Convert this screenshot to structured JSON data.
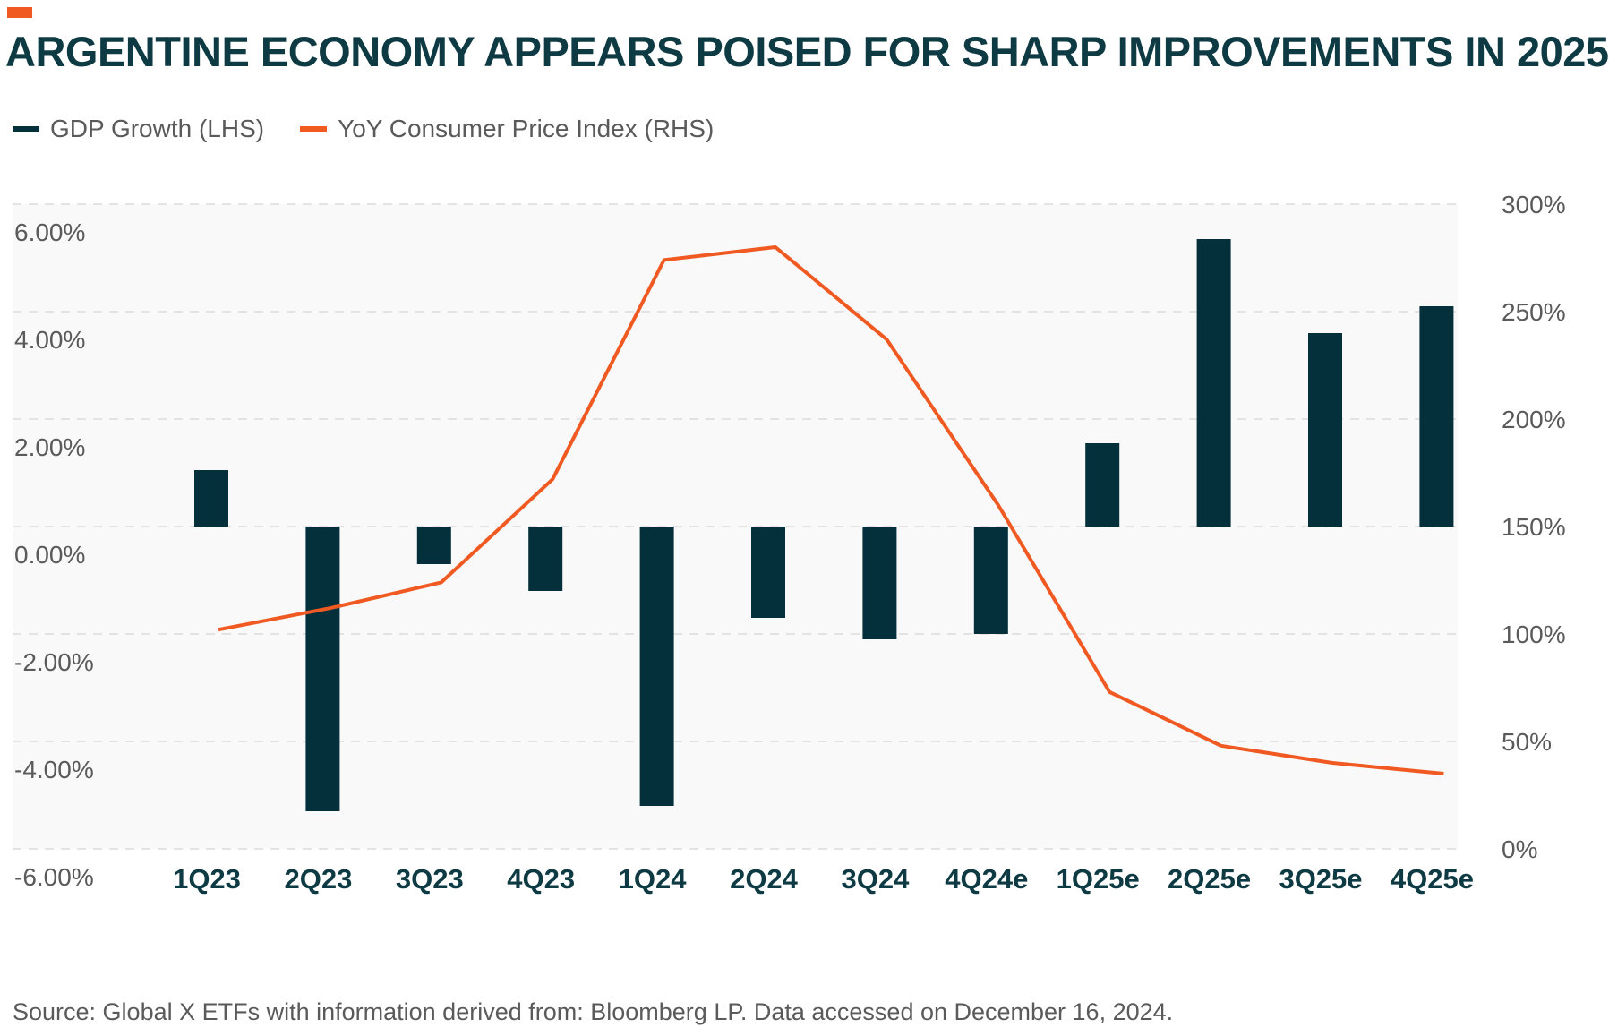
{
  "title": "ARGENTINE ECONOMY APPEARS POISED FOR SHARP IMPROVEMENTS IN 2025",
  "source": "Source: Global X ETFs with information derived from: Bloomberg LP. Data accessed on December 16, 2024.",
  "colors": {
    "accent": "#f05a22",
    "bar": "#03303a",
    "line": "#f05a22",
    "plot_bg": "#f8f9f8",
    "grid": "#dcdcdc"
  },
  "chart_data": {
    "type": "bar",
    "title": "ARGENTINE ECONOMY APPEARS POISED FOR SHARP IMPROVEMENTS IN 2025",
    "categories": [
      "1Q23",
      "2Q23",
      "3Q23",
      "4Q23",
      "1Q24",
      "2Q24",
      "3Q24",
      "4Q24e",
      "1Q25e",
      "2Q25e",
      "3Q25e",
      "4Q25e"
    ],
    "series": [
      {
        "name": "GDP Growth (LHS)",
        "type": "bar",
        "axis": "left",
        "values": [
          1.05,
          -5.3,
          -0.7,
          -1.2,
          -5.2,
          -1.7,
          -2.1,
          -2.0,
          1.55,
          5.35,
          3.6,
          4.1
        ]
      },
      {
        "name": "YoY Consumer Price Index (RHS)",
        "type": "line",
        "axis": "right",
        "values": [
          102,
          112,
          124,
          172,
          274,
          280,
          237,
          160,
          73,
          48,
          40,
          35
        ]
      }
    ],
    "left_axis": {
      "min": -6,
      "max": 6,
      "step": 2,
      "tick_labels": [
        "-6.00%",
        "-4.00%",
        "-2.00%",
        "0.00%",
        "2.00%",
        "4.00%",
        "6.00%"
      ]
    },
    "right_axis": {
      "min": 0,
      "max": 300,
      "step": 50,
      "tick_labels": [
        "0%",
        "50%",
        "100%",
        "150%",
        "200%",
        "250%",
        "300%"
      ]
    },
    "grid": true,
    "legend": "top-left"
  }
}
